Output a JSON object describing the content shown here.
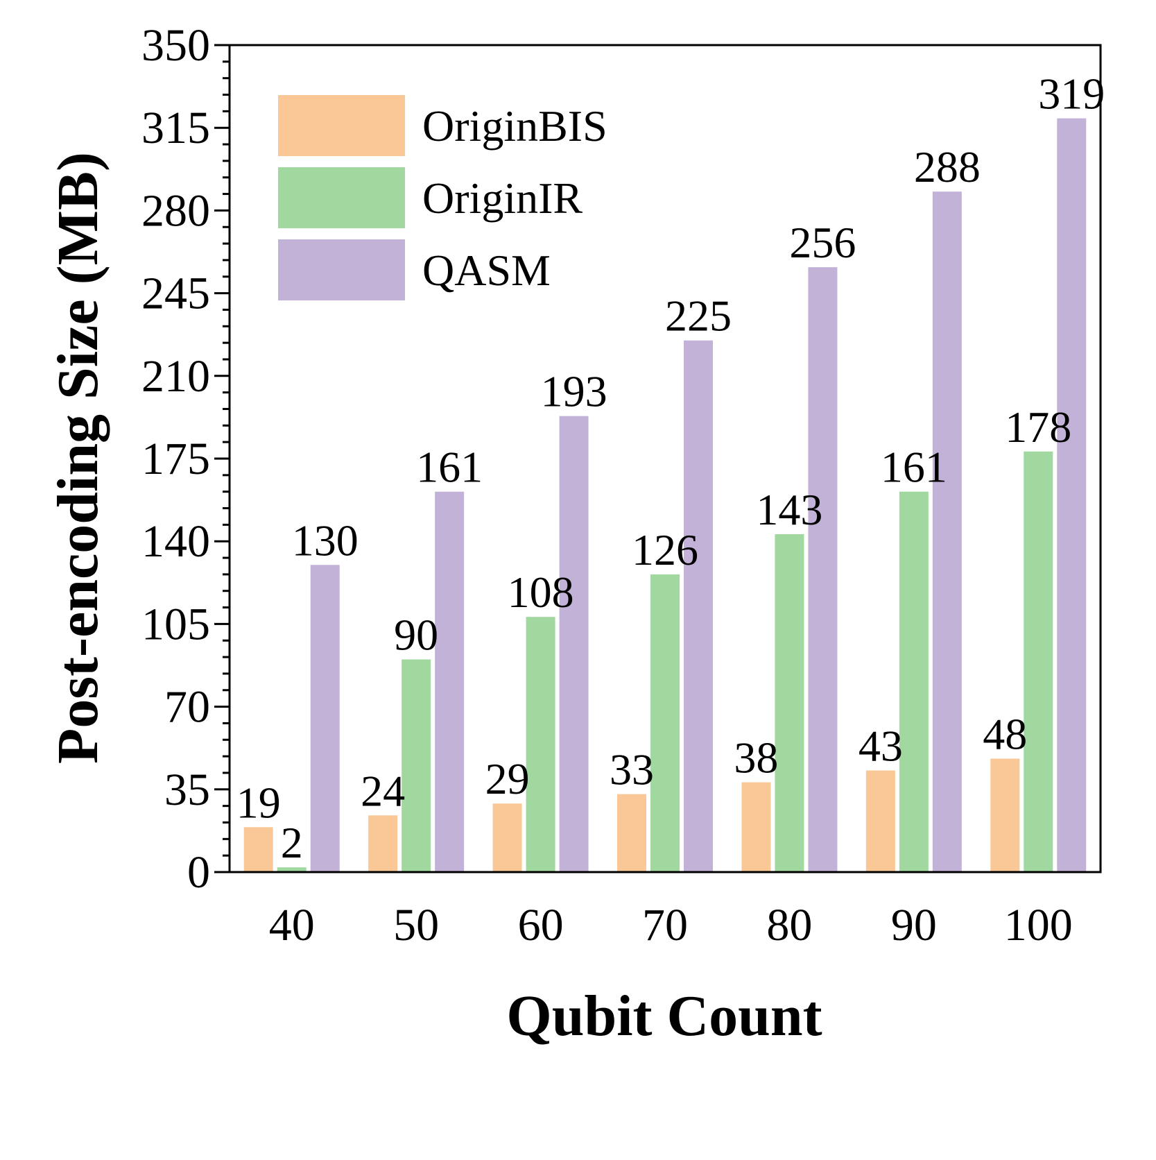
{
  "chart_data": {
    "type": "bar",
    "title": "",
    "xlabel": "Qubit Count",
    "ylabel": "Post-encoding Size (MB)",
    "categories": [
      "40",
      "50",
      "60",
      "70",
      "80",
      "90",
      "100"
    ],
    "series": [
      {
        "name": "OriginBIS",
        "color": "#F9C896",
        "values": [
          19,
          24,
          29,
          33,
          38,
          43,
          48
        ]
      },
      {
        "name": "OriginIR",
        "color": "#A0D8A0",
        "values": [
          2,
          90,
          108,
          126,
          143,
          161,
          178
        ]
      },
      {
        "name": "QASM",
        "color": "#C3B2D8",
        "values": [
          130,
          161,
          193,
          225,
          256,
          288,
          319
        ]
      }
    ],
    "ylim": [
      0,
      350
    ],
    "yticks": [
      "0",
      "35",
      "70",
      "105",
      "140",
      "175",
      "210",
      "245",
      "280",
      "315",
      "350"
    ],
    "legend_position": "top-left",
    "grid": false,
    "data_labels": true
  }
}
